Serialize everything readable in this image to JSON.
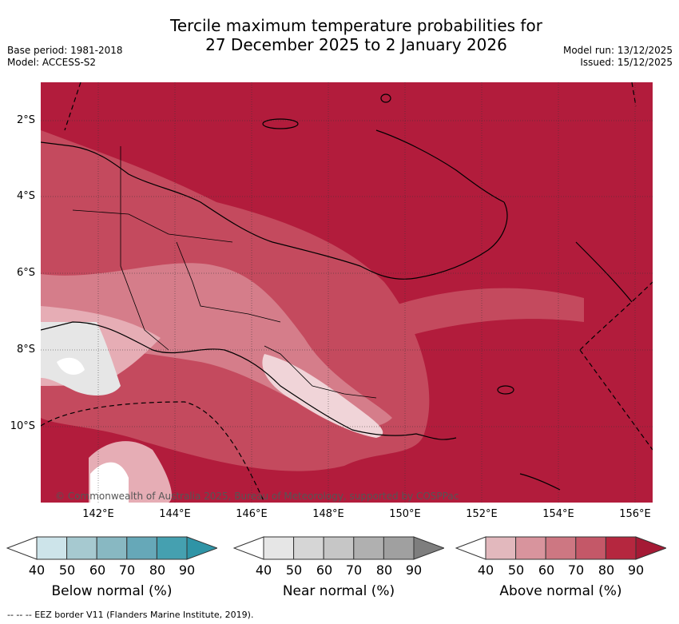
{
  "title": {
    "line1": "Tercile maximum temperature probabilities for",
    "line2": "27 December 2025 to 2 January 2026"
  },
  "meta": {
    "base_period": "Base period: 1981-2018",
    "model": "Model: ACCESS-S2",
    "model_run": "Model run: 13/12/2025",
    "issued": "Issued: 15/12/2025"
  },
  "map": {
    "credit": "© Commonwealth of Australia 2025, Bureau of Meteorology, supported by COSPPac",
    "lon_ticks": [
      "142°E",
      "144°E",
      "146°E",
      "148°E",
      "150°E",
      "152°E",
      "154°E",
      "156°E"
    ],
    "lat_ticks": [
      "2°S",
      "4°S",
      "6°S",
      "8°S",
      "10°S"
    ],
    "colors": {
      "above_90": "#b21c3c",
      "above_80": "#c44a5e",
      "above_70": "#d57d8a",
      "above_60": "#e6adb5",
      "above_50": "#f0d4d8",
      "near_40": "#e6e6e6",
      "no_data": "#ffffff"
    }
  },
  "legends": [
    {
      "label": "Below normal (%)",
      "ticks": [
        "40",
        "50",
        "60",
        "70",
        "80",
        "90"
      ],
      "colors": [
        "#ffffff",
        "#cde4ea",
        "#a6c9d0",
        "#88b8c2",
        "#66a8b8",
        "#45a0b0",
        "#2f94a6"
      ]
    },
    {
      "label": "Near normal (%)",
      "ticks": [
        "40",
        "50",
        "60",
        "70",
        "80",
        "90"
      ],
      "colors": [
        "#ffffff",
        "#e6e6e6",
        "#d6d6d6",
        "#c6c6c6",
        "#b0b0b0",
        "#a0a0a0",
        "#7e7e7e"
      ]
    },
    {
      "label": "Above normal (%)",
      "ticks": [
        "40",
        "50",
        "60",
        "70",
        "80",
        "90"
      ],
      "colors": [
        "#ffffff",
        "#e2b8bd",
        "#d8949d",
        "#cd7782",
        "#c45868",
        "#b5273f",
        "#a51a35"
      ]
    }
  ],
  "footer": "--  --  -- EEZ border V11 (Flanders Marine Institute, 2019)."
}
